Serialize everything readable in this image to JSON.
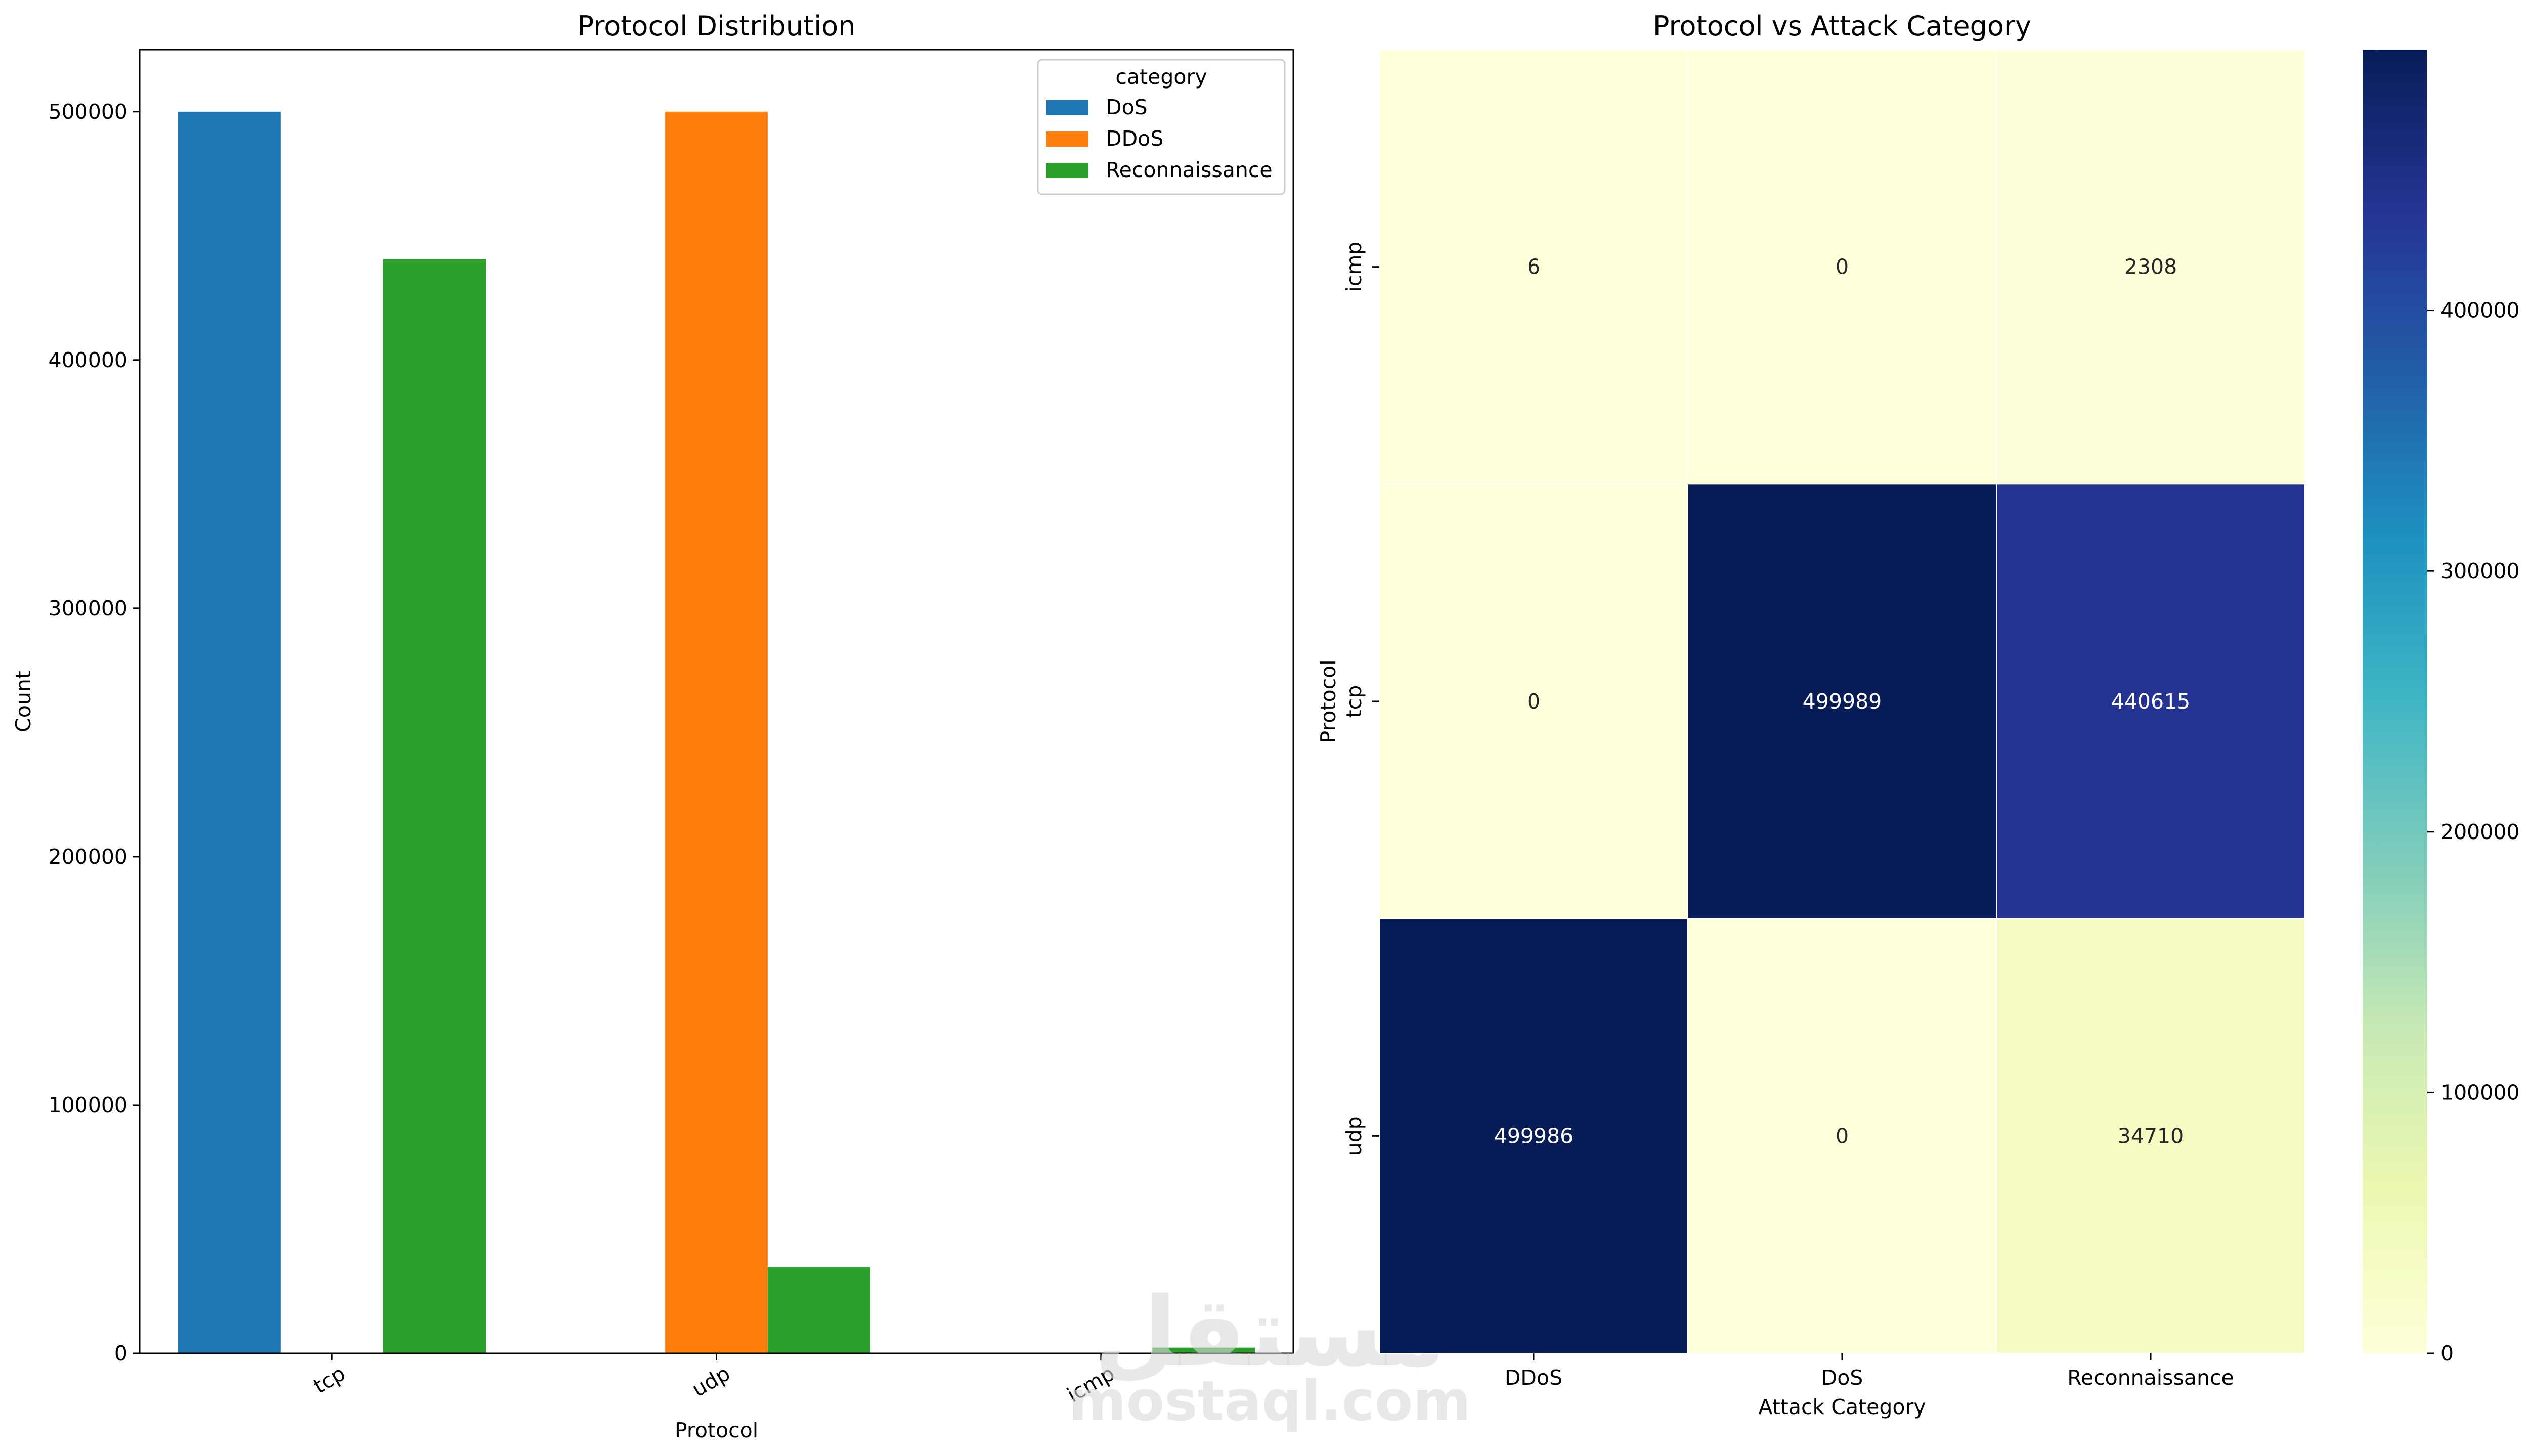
{
  "chart_data": [
    {
      "type": "bar",
      "title": "Protocol Distribution",
      "xlabel": "Protocol",
      "ylabel": "Count",
      "categories": [
        "tcp",
        "udp",
        "icmp"
      ],
      "series": [
        {
          "name": "DoS",
          "color": "#1f77b4",
          "values": [
            499989,
            0,
            0
          ]
        },
        {
          "name": "DDoS",
          "color": "#ff7f0e",
          "values": [
            0,
            499986,
            6
          ]
        },
        {
          "name": "Reconnaissance",
          "color": "#2ca02c",
          "values": [
            440615,
            34710,
            2308
          ]
        }
      ],
      "ylim": [
        0,
        525000
      ],
      "yticks": [
        0,
        100000,
        200000,
        300000,
        400000,
        500000
      ],
      "ytick_labels": [
        "0",
        "100000",
        "200000",
        "300000",
        "400000",
        "500000"
      ],
      "legend": {
        "title": "category",
        "placement": "top-right"
      },
      "grid": false
    },
    {
      "type": "heatmap",
      "title": "Protocol vs Attack Category",
      "xlabel": "Attack Category",
      "ylabel": "Protocol",
      "x_categories": [
        "DDoS",
        "DoS",
        "Reconnaissance"
      ],
      "y_categories": [
        "icmp",
        "tcp",
        "udp"
      ],
      "values": [
        [
          6,
          0,
          2308
        ],
        [
          0,
          499989,
          440615
        ],
        [
          499986,
          0,
          34710
        ]
      ],
      "annotations": [
        [
          "6",
          "0",
          "2308"
        ],
        [
          "0",
          "499989",
          "440615"
        ],
        [
          "499986",
          "0",
          "34710"
        ]
      ],
      "colormap": "YlGnBu",
      "colorbar": {
        "range": [
          0,
          499989
        ],
        "ticks": [
          0,
          100000,
          200000,
          300000,
          400000
        ],
        "tick_labels": [
          "0",
          "100000",
          "200000",
          "300000",
          "400000"
        ]
      }
    }
  ],
  "watermark": {
    "text": "mostaql.com",
    "logo_text": "مستقل"
  }
}
